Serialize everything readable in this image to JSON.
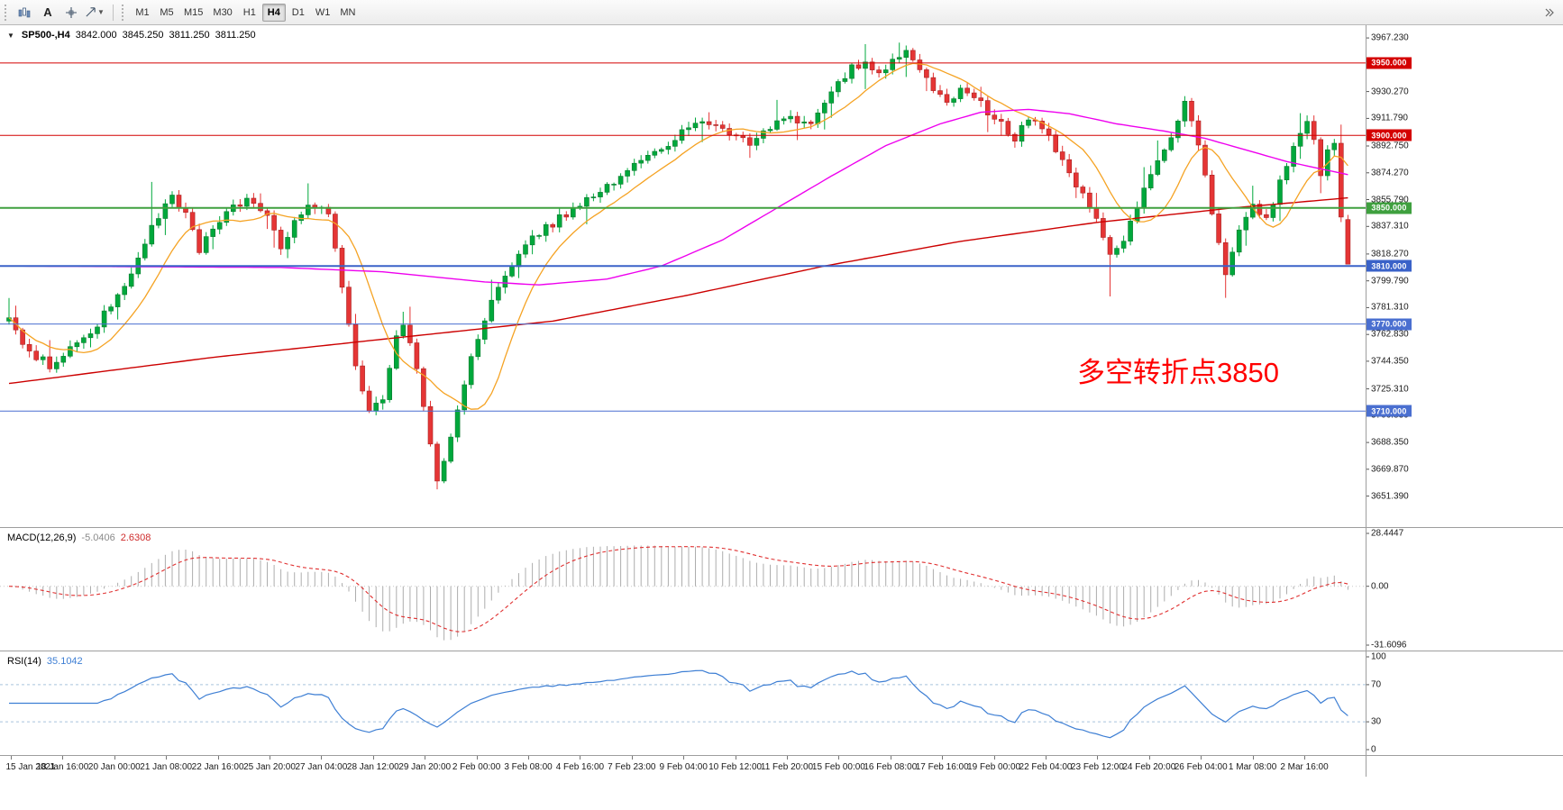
{
  "toolbar": {
    "text_button_label": "A",
    "timeframes": [
      {
        "label": "M1",
        "active": false
      },
      {
        "label": "M5",
        "active": false
      },
      {
        "label": "M15",
        "active": false
      },
      {
        "label": "M30",
        "active": false
      },
      {
        "label": "H1",
        "active": false
      },
      {
        "label": "H4",
        "active": true
      },
      {
        "label": "D1",
        "active": false
      },
      {
        "label": "W1",
        "active": false
      },
      {
        "label": "MN",
        "active": false
      }
    ]
  },
  "chart_data": {
    "type": "candlestick",
    "header": {
      "symbol_period": "SP500-,H4",
      "open": "3842.000",
      "high": "3845.250",
      "low": "3811.250",
      "close": "3811.250"
    },
    "bars": 198,
    "price_top": 3976.0,
    "price_bottom": 3630.0,
    "y_ticks": [
      "3967.230",
      "3948.750",
      "3930.270",
      "3911.790",
      "3892.750",
      "3874.270",
      "3855.790",
      "3837.310",
      "3818.270",
      "3799.790",
      "3781.310",
      "3762.830",
      "3744.350",
      "3725.310",
      "3706.830",
      "3688.350",
      "3669.870",
      "3651.390"
    ],
    "levels": [
      {
        "price": 3950.0,
        "label": "3950.000",
        "color": "#D40000",
        "width": 1
      },
      {
        "price": 3900.0,
        "label": "3900.000",
        "color": "#D40000",
        "width": 1
      },
      {
        "price": 3850.0,
        "label": "3850.000",
        "color": "#3FA03F",
        "width": 2
      },
      {
        "price": 3810.0,
        "label": "3810.000",
        "color": "#3A62C8",
        "width": 2
      },
      {
        "price": 3770.0,
        "label": "3770.000",
        "color": "#4A6FD0",
        "width": 1
      },
      {
        "price": 3710.0,
        "label": "3710.000",
        "color": "#4A6FD0",
        "width": 1
      }
    ],
    "x_labels": [
      "15 Jan 2021",
      "18 Jan 16:00",
      "20 Jan 00:00",
      "21 Jan 08:00",
      "22 Jan 16:00",
      "25 Jan 20:00",
      "27 Jan 04:00",
      "28 Jan 12:00",
      "29 Jan 20:00",
      "2 Feb 00:00",
      "3 Feb 08:00",
      "4 Feb 16:00",
      "7 Feb 23:00",
      "9 Feb 04:00",
      "10 Feb 12:00",
      "11 Feb 20:00",
      "15 Feb 00:00",
      "16 Feb 08:00",
      "17 Feb 16:00",
      "19 Feb 00:00",
      "22 Feb 04:00",
      "23 Feb 12:00",
      "24 Feb 20:00",
      "26 Feb 04:00",
      "1 Mar 08:00",
      "2 Mar 16:00"
    ],
    "close_path_anchors": [
      [
        0,
        3772
      ],
      [
        2,
        3758
      ],
      [
        4,
        3748
      ],
      [
        6,
        3742
      ],
      [
        9,
        3754
      ],
      [
        12,
        3764
      ],
      [
        15,
        3782
      ],
      [
        18,
        3804
      ],
      [
        21,
        3836
      ],
      [
        24,
        3860
      ],
      [
        26,
        3845
      ],
      [
        28,
        3822
      ],
      [
        30,
        3836
      ],
      [
        33,
        3850
      ],
      [
        35,
        3858
      ],
      [
        36,
        3856
      ],
      [
        38,
        3846
      ],
      [
        40,
        3824
      ],
      [
        42,
        3840
      ],
      [
        44,
        3854
      ],
      [
        46,
        3850
      ],
      [
        47,
        3846
      ],
      [
        49,
        3798
      ],
      [
        51,
        3744
      ],
      [
        53,
        3708
      ],
      [
        55,
        3718
      ],
      [
        57,
        3762
      ],
      [
        58,
        3768
      ],
      [
        59,
        3755
      ],
      [
        60,
        3738
      ],
      [
        61,
        3715
      ],
      [
        62,
        3690
      ],
      [
        63,
        3662
      ],
      [
        64,
        3678
      ],
      [
        66,
        3710
      ],
      [
        68,
        3745
      ],
      [
        70,
        3772
      ],
      [
        72,
        3795
      ],
      [
        74,
        3812
      ],
      [
        76,
        3824
      ],
      [
        79,
        3836
      ],
      [
        82,
        3846
      ],
      [
        85,
        3856
      ],
      [
        88,
        3866
      ],
      [
        91,
        3876
      ],
      [
        94,
        3884
      ],
      [
        97,
        3895
      ],
      [
        100,
        3905
      ],
      [
        103,
        3910
      ],
      [
        106,
        3902
      ],
      [
        109,
        3893
      ],
      [
        112,
        3906
      ],
      [
        115,
        3911
      ],
      [
        118,
        3908
      ],
      [
        120,
        3922
      ],
      [
        122,
        3936
      ],
      [
        124,
        3946
      ],
      [
        126,
        3950
      ],
      [
        128,
        3944
      ],
      [
        130,
        3952
      ],
      [
        132,
        3958
      ],
      [
        134,
        3946
      ],
      [
        136,
        3932
      ],
      [
        138,
        3922
      ],
      [
        140,
        3930
      ],
      [
        142,
        3926
      ],
      [
        145,
        3912
      ],
      [
        148,
        3898
      ],
      [
        150,
        3912
      ],
      [
        152,
        3905
      ],
      [
        154,
        3890
      ],
      [
        156,
        3872
      ],
      [
        158,
        3858
      ],
      [
        160,
        3842
      ],
      [
        162,
        3815
      ],
      [
        164,
        3828
      ],
      [
        166,
        3852
      ],
      [
        168,
        3872
      ],
      [
        170,
        3892
      ],
      [
        172,
        3908
      ],
      [
        173,
        3922
      ],
      [
        175,
        3895
      ],
      [
        177,
        3848
      ],
      [
        179,
        3806
      ],
      [
        181,
        3832
      ],
      [
        183,
        3852
      ],
      [
        185,
        3842
      ],
      [
        186,
        3855
      ],
      [
        188,
        3880
      ],
      [
        190,
        3900
      ],
      [
        191,
        3910
      ],
      [
        192,
        3895
      ],
      [
        193,
        3872
      ],
      [
        194,
        3888
      ],
      [
        195,
        3893
      ],
      [
        196,
        3845
      ],
      [
        197,
        3811
      ]
    ],
    "wick_overrides": {
      "21": {
        "high": 3868
      },
      "44": {
        "high": 3867
      },
      "63": {
        "low": 3656
      },
      "131": {
        "high": 3964
      },
      "162": {
        "low": 3789
      },
      "179": {
        "low": 3788
      }
    },
    "last_candle": {
      "o": 3842.0,
      "h": 3845.25,
      "l": 3811.25,
      "c": 3811.25
    },
    "ma_mid_anchors": [
      [
        0,
        3810
      ],
      [
        40,
        3809
      ],
      [
        55,
        3806
      ],
      [
        70,
        3799
      ],
      [
        78,
        3797
      ],
      [
        88,
        3801
      ],
      [
        96,
        3810
      ],
      [
        105,
        3828
      ],
      [
        113,
        3850
      ],
      [
        121,
        3872
      ],
      [
        129,
        3893
      ],
      [
        137,
        3908
      ],
      [
        143,
        3916
      ],
      [
        150,
        3918
      ],
      [
        156,
        3915
      ],
      [
        163,
        3908
      ],
      [
        170,
        3903
      ],
      [
        176,
        3898
      ],
      [
        182,
        3890
      ],
      [
        188,
        3882
      ],
      [
        193,
        3877
      ],
      [
        197,
        3873
      ]
    ],
    "ma_slow_anchors": [
      [
        0,
        3729
      ],
      [
        30,
        3747
      ],
      [
        60,
        3762
      ],
      [
        80,
        3772
      ],
      [
        100,
        3790
      ],
      [
        120,
        3810
      ],
      [
        140,
        3827
      ],
      [
        160,
        3840
      ],
      [
        180,
        3850
      ],
      [
        197,
        3857
      ]
    ],
    "colors": {
      "up": "#00A83C",
      "down": "#E53535",
      "up_border": "#0A7A2E",
      "down_border": "#A82222",
      "ma_fast": "#F5A324",
      "ma_mid": "#EE00EE",
      "ma_slow": "#CC0000"
    }
  },
  "macd": {
    "label": "MACD(12,26,9)",
    "value_main": "-5.0406",
    "value_signal": "2.6308",
    "scale_max": 28.4447,
    "scale_min": -31.6096,
    "scale_labels": {
      "top": "28.4447",
      "zero": "0.00",
      "bottom": "-31.6096"
    },
    "colors": {
      "histogram": "#ADADAD",
      "signal": "#E03030"
    }
  },
  "rsi": {
    "label": "RSI(14)",
    "value": "35.1042",
    "scale_labels": [
      "100",
      "70",
      "30",
      "0"
    ],
    "levels": [
      70,
      30
    ],
    "color": "#3E7FD4"
  },
  "annotation": {
    "text": "多空转折点3850",
    "color": "#FF0000"
  }
}
